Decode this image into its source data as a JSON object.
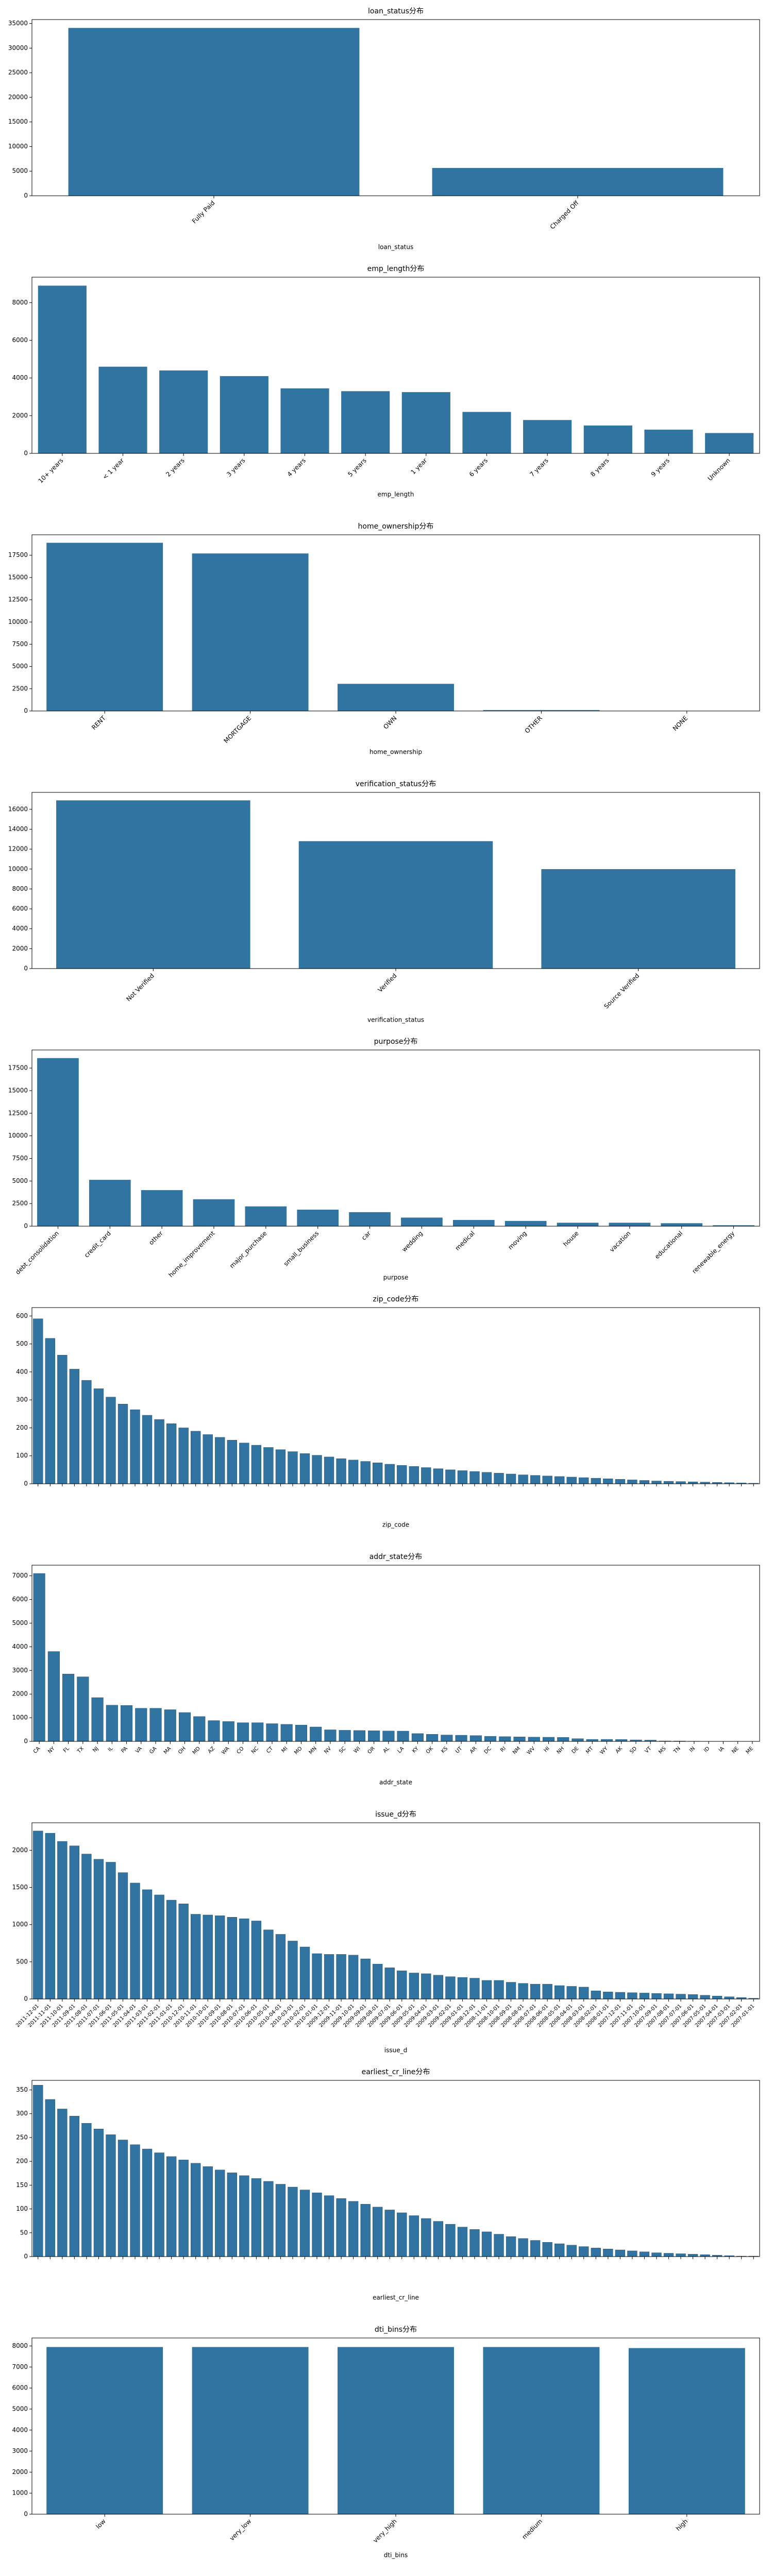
{
  "chart_data": [
    {
      "type": "bar",
      "title": "loan_status分布",
      "xlabel": "loan_status",
      "color": "#3274a1",
      "categories": [
        "Fully Paid",
        "Charged Off"
      ],
      "values": [
        34100,
        5650
      ],
      "ylim": [
        0,
        35800
      ],
      "yticks": [
        0,
        5000,
        10000,
        15000,
        20000,
        25000,
        30000,
        35000
      ]
    },
    {
      "type": "bar",
      "title": "emp_length分布",
      "xlabel": "emp_length",
      "color": "#3274a1",
      "categories": [
        "10+ years",
        "< 1 year",
        "2 years",
        "3 years",
        "4 years",
        "5 years",
        "1 year",
        "6 years",
        "7 years",
        "8 years",
        "9 years",
        "Unknown"
      ],
      "values": [
        8900,
        4600,
        4400,
        4100,
        3450,
        3300,
        3250,
        2200,
        1770,
        1480,
        1260,
        1080
      ],
      "ylim": [
        0,
        9350
      ],
      "yticks": [
        0,
        2000,
        4000,
        6000,
        8000
      ]
    },
    {
      "type": "bar",
      "title": "home_ownership分布",
      "xlabel": "home_ownership",
      "color": "#3274a1",
      "categories": [
        "RENT",
        "MORTGAGE",
        "OWN",
        "OTHER",
        "NONE"
      ],
      "values": [
        18900,
        17700,
        3050,
        98,
        3
      ],
      "ylim": [
        0,
        19800
      ],
      "yticks": [
        0,
        2500,
        5000,
        7500,
        10000,
        12500,
        15000,
        17500
      ]
    },
    {
      "type": "bar",
      "title": "verification_status分布",
      "xlabel": "verification_status",
      "color": "#3274a1",
      "categories": [
        "Not Verified",
        "Verified",
        "Source Verified"
      ],
      "values": [
        16900,
        12800,
        9990
      ],
      "ylim": [
        0,
        17700
      ],
      "yticks": [
        0,
        2000,
        4000,
        6000,
        8000,
        10000,
        12000,
        14000,
        16000
      ]
    },
    {
      "type": "bar",
      "title": "purpose分布",
      "xlabel": "purpose",
      "color": "#3274a1",
      "categories": [
        "debt_consolidation",
        "credit_card",
        "other",
        "home_improvement",
        "major_purchase",
        "small_business",
        "car",
        "wedding",
        "medical",
        "moving",
        "house",
        "vacation",
        "educational",
        "renewable_energy"
      ],
      "values": [
        18600,
        5130,
        3990,
        2980,
        2190,
        1830,
        1550,
        950,
        690,
        580,
        380,
        380,
        325,
        100
      ],
      "ylim": [
        0,
        19500
      ],
      "yticks": [
        0,
        2500,
        5000,
        7500,
        10000,
        12500,
        15000,
        17500
      ]
    },
    {
      "type": "bar",
      "title": "zip_code分布",
      "xlabel": "zip_code",
      "color": "#3274a1",
      "categories": [
        null,
        null,
        null,
        null,
        null,
        null,
        null,
        null,
        null,
        null,
        null,
        null,
        null,
        null,
        null,
        null,
        null,
        null,
        null,
        null,
        null,
        null,
        null,
        null,
        null,
        null,
        null,
        null,
        null,
        null,
        null,
        null,
        null,
        null,
        null,
        null,
        null,
        null,
        null,
        null,
        null,
        null,
        null,
        null,
        null,
        null,
        null,
        null,
        null,
        null,
        null,
        null,
        null,
        null,
        null,
        null,
        null,
        null,
        null,
        null
      ],
      "values": [
        590,
        520,
        460,
        410,
        370,
        340,
        310,
        285,
        265,
        245,
        230,
        215,
        200,
        188,
        176,
        166,
        156,
        146,
        138,
        130,
        122,
        115,
        108,
        102,
        96,
        90,
        85,
        80,
        75,
        70,
        66,
        62,
        58,
        54,
        50,
        47,
        44,
        41,
        38,
        35,
        32,
        30,
        28,
        26,
        24,
        22,
        20,
        18,
        16,
        14,
        12,
        10,
        9,
        8,
        7,
        6,
        5,
        4,
        3,
        2
      ],
      "ylim": [
        0,
        630
      ],
      "yticks": [
        0,
        100,
        200,
        300,
        400,
        500,
        600
      ]
    },
    {
      "type": "bar",
      "title": "addr_state分布",
      "xlabel": "addr_state",
      "color": "#3274a1",
      "categories": [
        "CA",
        "NY",
        "FL",
        "TX",
        "NJ",
        "IL",
        "PA",
        "VA",
        "GA",
        "MA",
        "OH",
        "MD",
        "AZ",
        "WA",
        "CO",
        "NC",
        "CT",
        "MI",
        "MO",
        "MN",
        "NV",
        "SC",
        "WI",
        "OR",
        "AL",
        "LA",
        "KY",
        "OK",
        "KS",
        "UT",
        "AR",
        "DC",
        "RI",
        "NM",
        "WV",
        "HI",
        "NH",
        "DE",
        "MT",
        "WY",
        "AK",
        "SD",
        "VT",
        "MS",
        "TN",
        "IN",
        "ID",
        "IA",
        "NE",
        "ME"
      ],
      "values": [
        7100,
        3800,
        2850,
        2730,
        1850,
        1530,
        1520,
        1400,
        1400,
        1340,
        1220,
        1050,
        880,
        840,
        790,
        790,
        750,
        720,
        690,
        610,
        490,
        470,
        460,
        450,
        440,
        435,
        330,
        300,
        270,
        260,
        245,
        215,
        200,
        190,
        180,
        175,
        170,
        115,
        85,
        85,
        80,
        64,
        54,
        19,
        17,
        9,
        6,
        5,
        5,
        3
      ],
      "ylim": [
        0,
        7450
      ],
      "yticks": [
        0,
        1000,
        2000,
        3000,
        4000,
        5000,
        6000,
        7000
      ]
    },
    {
      "type": "bar",
      "title": "issue_d分布",
      "xlabel": "issue_d",
      "color": "#3274a1",
      "categories": [
        "2011-12-01",
        "2011-11-01",
        "2011-10-01",
        "2011-09-01",
        "2011-08-01",
        "2011-07-01",
        "2011-06-01",
        "2011-05-01",
        "2011-04-01",
        "2011-03-01",
        "2011-02-01",
        "2011-01-01",
        "2010-12-01",
        "2010-11-01",
        "2010-10-01",
        "2010-09-01",
        "2010-08-01",
        "2010-07-01",
        "2010-06-01",
        "2010-05-01",
        "2010-04-01",
        "2010-03-01",
        "2010-02-01",
        "2010-01-01",
        "2009-12-01",
        "2009-11-01",
        "2009-10-01",
        "2009-09-01",
        "2009-08-01",
        "2009-07-01",
        "2009-06-01",
        "2009-05-01",
        "2009-04-01",
        "2009-03-01",
        "2009-02-01",
        "2009-01-01",
        "2008-12-01",
        "2008-11-01",
        "2008-10-01",
        "2008-09-01",
        "2008-08-01",
        "2008-07-01",
        "2008-06-01",
        "2008-05-01",
        "2008-04-01",
        "2008-03-01",
        "2008-02-01",
        "2008-01-01",
        "2007-12-01",
        "2007-11-01",
        "2007-10-01",
        "2007-09-01",
        "2007-08-01",
        "2007-07-01",
        "2007-06-01",
        "2007-05-01",
        "2007-04-01",
        "2007-03-01",
        "2007-02-01",
        "2007-01-01"
      ],
      "values": [
        2260,
        2230,
        2120,
        2060,
        1950,
        1880,
        1840,
        1700,
        1560,
        1470,
        1400,
        1330,
        1280,
        1140,
        1130,
        1120,
        1100,
        1080,
        1050,
        930,
        870,
        780,
        700,
        610,
        600,
        600,
        590,
        540,
        470,
        420,
        380,
        350,
        340,
        320,
        300,
        290,
        280,
        250,
        250,
        225,
        210,
        200,
        200,
        180,
        170,
        160,
        110,
        95,
        90,
        85,
        80,
        75,
        70,
        65,
        60,
        50,
        40,
        30,
        20,
        10
      ],
      "ylim": [
        0,
        2370
      ],
      "yticks": [
        0,
        500,
        1000,
        1500,
        2000
      ]
    },
    {
      "type": "bar",
      "title": "earliest_cr_line分布",
      "xlabel": "earliest_cr_line",
      "color": "#3274a1",
      "categories": [
        null,
        null,
        null,
        null,
        null,
        null,
        null,
        null,
        null,
        null,
        null,
        null,
        null,
        null,
        null,
        null,
        null,
        null,
        null,
        null,
        null,
        null,
        null,
        null,
        null,
        null,
        null,
        null,
        null,
        null,
        null,
        null,
        null,
        null,
        null,
        null,
        null,
        null,
        null,
        null,
        null,
        null,
        null,
        null,
        null,
        null,
        null,
        null,
        null,
        null,
        null,
        null,
        null,
        null,
        null,
        null,
        null,
        null,
        null,
        null
      ],
      "values": [
        360,
        330,
        310,
        295,
        280,
        268,
        256,
        245,
        235,
        226,
        218,
        210,
        203,
        196,
        189,
        182,
        176,
        170,
        164,
        158,
        152,
        146,
        140,
        134,
        128,
        122,
        116,
        110,
        104,
        98,
        92,
        86,
        80,
        74,
        68,
        62,
        57,
        52,
        47,
        42,
        38,
        34,
        30,
        27,
        24,
        21,
        18,
        16,
        14,
        12,
        10,
        8,
        7,
        6,
        5,
        4,
        3,
        2,
        1,
        1
      ],
      "ylim": [
        0,
        370
      ],
      "yticks": [
        0,
        50,
        100,
        150,
        200,
        250,
        300,
        350
      ]
    },
    {
      "type": "bar",
      "title": "dti_bins分布",
      "xlabel": "dti_bins",
      "color": "#3274a1",
      "categories": [
        "low",
        "very_low",
        "very_high",
        "medium",
        "high"
      ],
      "values": [
        7950,
        7950,
        7950,
        7950,
        7900
      ],
      "ylim": [
        0,
        8380
      ],
      "yticks": [
        0,
        1000,
        2000,
        3000,
        4000,
        5000,
        6000,
        7000,
        8000
      ]
    }
  ]
}
